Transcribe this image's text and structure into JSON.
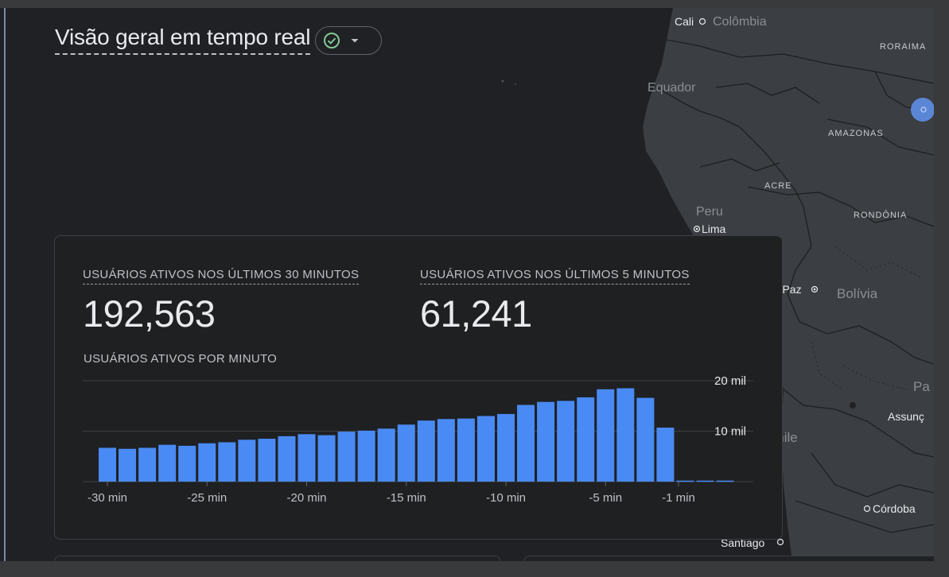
{
  "header": {
    "title": "Visão geral em tempo real",
    "status_icon": "check-circle-icon",
    "dropdown_icon": "caret-down-icon",
    "status_color": "#81c995"
  },
  "map": {
    "labels": {
      "cali": "Cali",
      "colombia": "Colômbia",
      "roraima": "RORAIMA",
      "equador": "Equador",
      "amazonas": "AMAZONAS",
      "acre": "ACRE",
      "peru": "Peru",
      "lima": "Lima",
      "rondonia": "RONDÔNIA",
      "la_paz": "La Paz",
      "bolivia": "Bolívia",
      "pa": "Pa",
      "assuncao": "Assunç",
      "chile": "Chile",
      "cordoba": "Córdoba",
      "santiago": "Santiago"
    },
    "marker_color": "#5b86d6"
  },
  "card": {
    "metric_30_label": "USUÁRIOS ATIVOS NOS ÚLTIMOS 30 MINUTOS",
    "metric_30_value": "192,563",
    "metric_5_label": "USUÁRIOS ATIVOS NOS ÚLTIMOS 5 MINUTOS",
    "metric_5_value": "61,241",
    "per_minute_label": "USUÁRIOS ATIVOS POR MINUTO"
  },
  "chart_data": {
    "type": "bar",
    "x_ticks": [
      "-30 min",
      "-25 min",
      "-20 min",
      "-15 min",
      "-10 min",
      "-5 min",
      "-1 min"
    ],
    "y_ticks": [
      "20 mil",
      "10 mil"
    ],
    "ylim": [
      0,
      20000
    ],
    "grid": true,
    "bar_color": "#4a8af4",
    "values": [
      6700,
      6500,
      6700,
      7300,
      7100,
      7600,
      7800,
      8300,
      8500,
      9000,
      9400,
      9200,
      9900,
      10100,
      10500,
      11300,
      12100,
      12400,
      12500,
      13000,
      13400,
      15200,
      15800,
      16000,
      16700,
      18300,
      18500,
      16600,
      10700,
      200,
      200,
      200
    ]
  }
}
